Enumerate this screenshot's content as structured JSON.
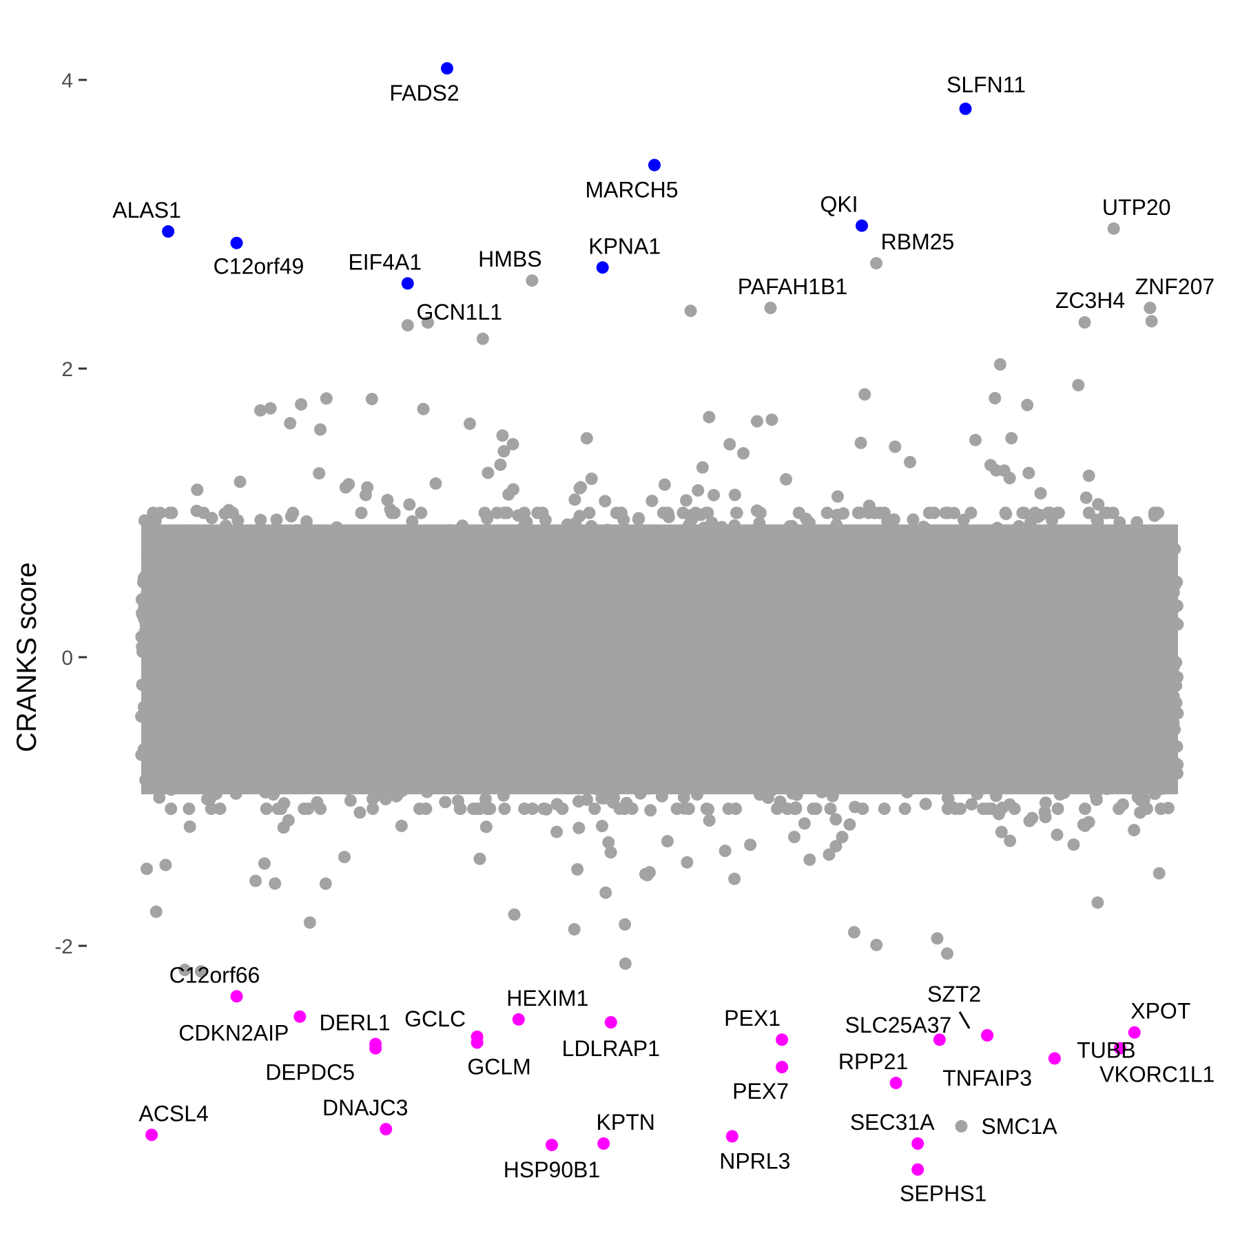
{
  "chart_data": {
    "type": "scatter",
    "title": "",
    "xlabel": "",
    "ylabel": "CRANKS score",
    "ylim": [
      -2.6,
      4.3
    ],
    "yticks": [
      -2,
      0,
      2,
      4
    ],
    "grid": false,
    "legend": "none",
    "colors": {
      "background_points": "#a3a3a3",
      "top_hits": "#0000ff",
      "bottom_hits": "#ff00ff",
      "label_text": "#000000",
      "tick_text": "#4d4d4d"
    },
    "background_distribution": {
      "description_x": "gene index (x axis unlabeled)",
      "x_range": [
        0,
        1
      ],
      "y_core_range": [
        -1.0,
        1.0
      ],
      "y_sparse_range": [
        -2.3,
        2.4
      ]
    },
    "highlighted_genes": [
      {
        "gene": "FADS2",
        "x": 0.295,
        "y": 4.08,
        "group": "top"
      },
      {
        "gene": "SLFN11",
        "x": 0.795,
        "y": 3.8,
        "group": "top"
      },
      {
        "gene": "MARCH5",
        "x": 0.495,
        "y": 3.41,
        "group": "top"
      },
      {
        "gene": "ALAS1",
        "x": 0.026,
        "y": 2.95,
        "group": "top"
      },
      {
        "gene": "C12orf49",
        "x": 0.092,
        "y": 2.87,
        "group": "top"
      },
      {
        "gene": "QKI",
        "x": 0.695,
        "y": 2.99,
        "group": "top"
      },
      {
        "gene": "KPNA1",
        "x": 0.445,
        "y": 2.7,
        "group": "top"
      },
      {
        "gene": "EIF4A1",
        "x": 0.257,
        "y": 2.59,
        "group": "top"
      },
      {
        "gene": "UTP20",
        "x": 0.938,
        "y": 2.97,
        "group": "none"
      },
      {
        "gene": "RBM25",
        "x": 0.709,
        "y": 2.73,
        "group": "none"
      },
      {
        "gene": "HMBS",
        "x": 0.377,
        "y": 2.61,
        "group": "none"
      },
      {
        "gene": "PAFAH1B1",
        "x": 0.607,
        "y": 2.42,
        "group": "none"
      },
      {
        "gene": "ZNF207",
        "x": 0.973,
        "y": 2.42,
        "group": "none"
      },
      {
        "gene": "GCN1L1",
        "x": 0.257,
        "y": 2.3,
        "group": "none"
      },
      {
        "gene": "ZC3H4",
        "x": 0.91,
        "y": 2.32,
        "group": "none"
      },
      {
        "gene": "C12orf66",
        "x": 0.092,
        "y": -2.35,
        "group": "bottom"
      },
      {
        "gene": "CDKN2AIP",
        "x": 0.153,
        "y": -2.49,
        "group": "bottom"
      },
      {
        "gene": "DERL1",
        "x": 0.226,
        "y": -2.68,
        "group": "bottom"
      },
      {
        "gene": "DEPDC5",
        "x": 0.226,
        "y": -2.71,
        "group": "bottom"
      },
      {
        "gene": "GCLC",
        "x": 0.324,
        "y": -2.63,
        "group": "bottom"
      },
      {
        "gene": "GCLM",
        "x": 0.324,
        "y": -2.67,
        "group": "bottom"
      },
      {
        "gene": "HEXIM1",
        "x": 0.364,
        "y": -2.51,
        "group": "bottom"
      },
      {
        "gene": "LDLRAP1",
        "x": 0.453,
        "y": -2.53,
        "group": "bottom"
      },
      {
        "gene": "PEX1",
        "x": 0.618,
        "y": -2.65,
        "group": "bottom"
      },
      {
        "gene": "PEX7",
        "x": 0.618,
        "y": -2.84,
        "group": "bottom"
      },
      {
        "gene": "SLC25A37",
        "x": 0.77,
        "y": -2.65,
        "group": "bottom"
      },
      {
        "gene": "SZT2",
        "x": 0.816,
        "y": -2.62,
        "group": "bottom"
      },
      {
        "gene": "TNFAIP3",
        "x": 0.816,
        "y": -2.62,
        "group": "bottom"
      },
      {
        "gene": "TUBB",
        "x": 0.881,
        "y": -2.78,
        "group": "bottom"
      },
      {
        "gene": "XPOT",
        "x": 0.958,
        "y": -2.6,
        "group": "bottom"
      },
      {
        "gene": "VKORC1L1",
        "x": 0.944,
        "y": -2.71,
        "group": "bottom"
      },
      {
        "gene": "RPP21",
        "x": 0.728,
        "y": -2.95,
        "group": "bottom"
      },
      {
        "gene": "SMC1A",
        "x": 0.791,
        "y": -3.25,
        "group": "none"
      },
      {
        "gene": "ACSL4",
        "x": 0.01,
        "y": -3.31,
        "group": "bottom"
      },
      {
        "gene": "DNAJC3",
        "x": 0.236,
        "y": -3.27,
        "group": "bottom"
      },
      {
        "gene": "KPTN",
        "x": 0.446,
        "y": -3.37,
        "group": "bottom"
      },
      {
        "gene": "HSP90B1",
        "x": 0.396,
        "y": -3.38,
        "group": "bottom"
      },
      {
        "gene": "NPRL3",
        "x": 0.57,
        "y": -3.32,
        "group": "bottom"
      },
      {
        "gene": "SEC31A",
        "x": 0.749,
        "y": -3.37,
        "group": "bottom"
      },
      {
        "gene": "SEPHS1",
        "x": 0.749,
        "y": -3.55,
        "group": "bottom"
      }
    ]
  }
}
